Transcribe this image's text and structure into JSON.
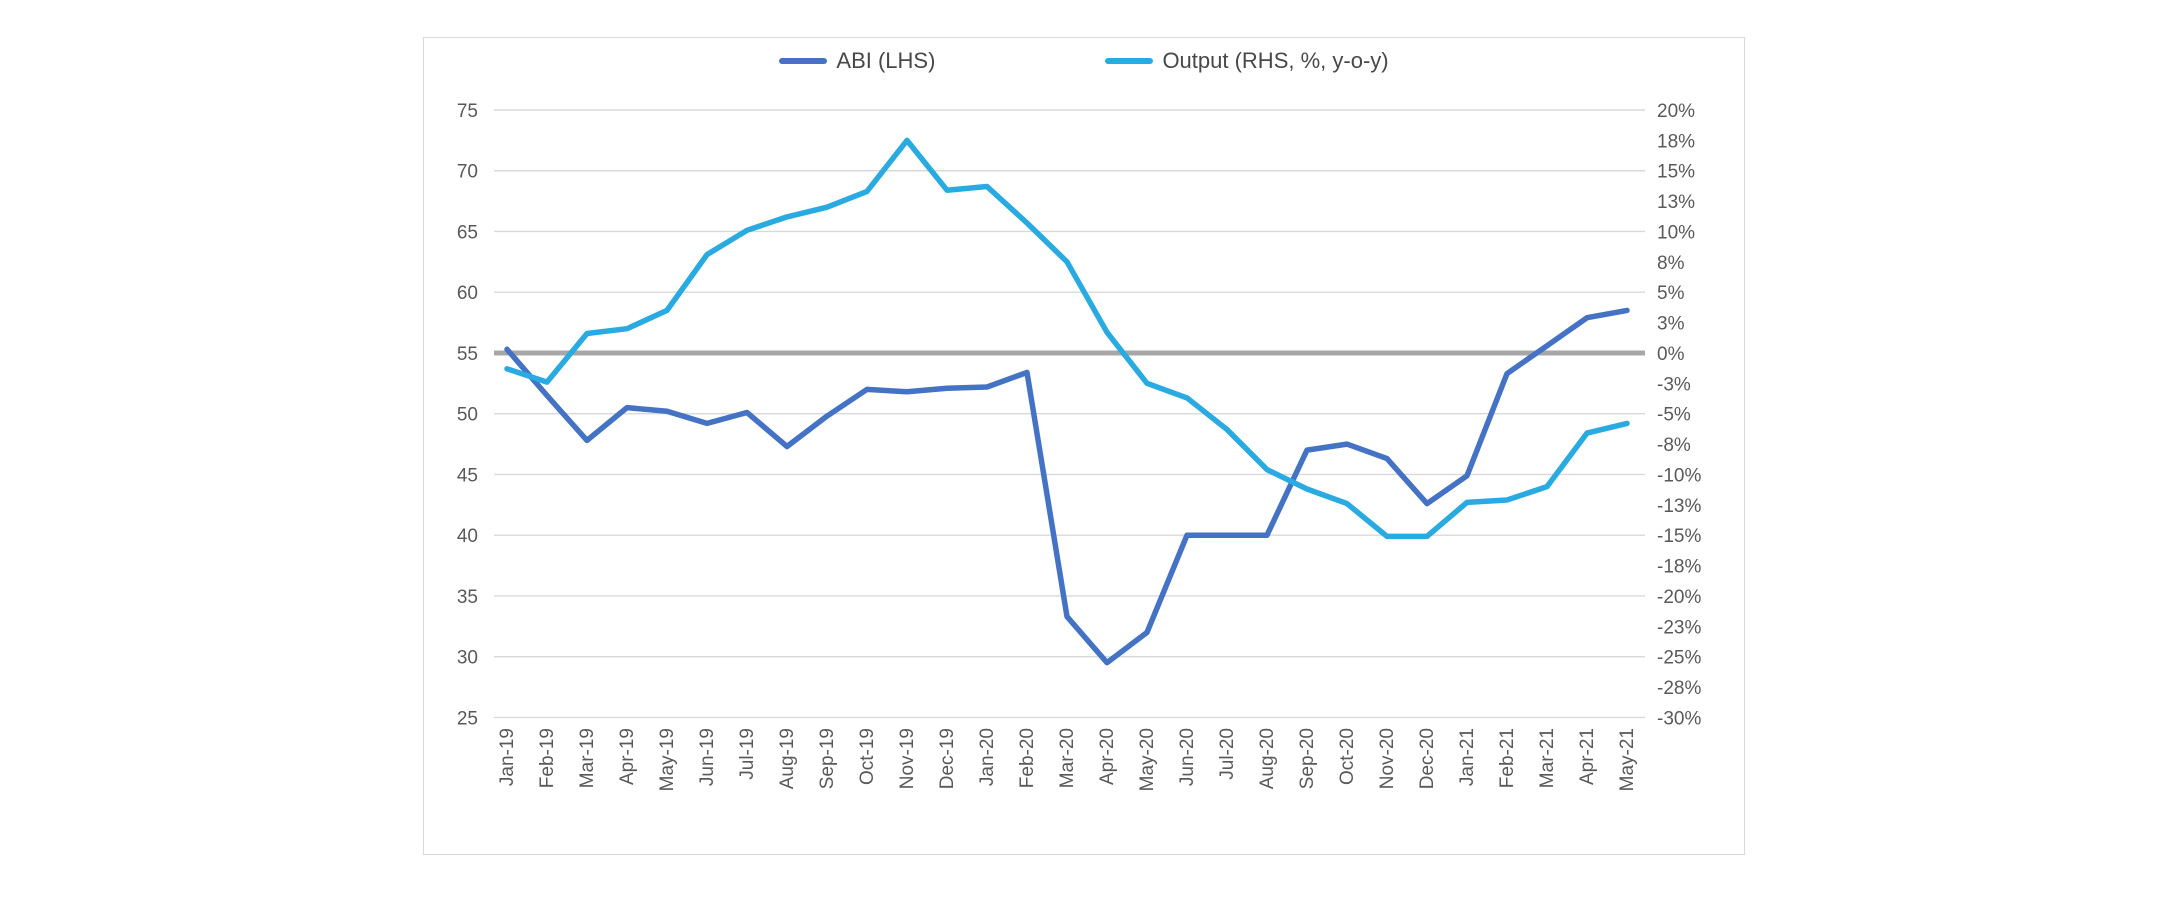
{
  "chart_data": {
    "type": "line",
    "title": "",
    "categories": [
      "Jan-19",
      "Feb-19",
      "Mar-19",
      "Apr-19",
      "May-19",
      "Jun-19",
      "Jul-19",
      "Aug-19",
      "Sep-19",
      "Oct-19",
      "Nov-19",
      "Dec-19",
      "Jan-20",
      "Feb-20",
      "Mar-20",
      "Apr-20",
      "May-20",
      "Jun-20",
      "Jul-20",
      "Aug-20",
      "Sep-20",
      "Oct-20",
      "Nov-20",
      "Dec-20",
      "Jan-21",
      "Feb-21",
      "Mar-21",
      "Apr-21",
      "May-21"
    ],
    "series": [
      {
        "name": "ABI (LHS)",
        "axis": "left",
        "color": "#4472C4",
        "values": [
          55.3,
          51.5,
          47.8,
          50.5,
          50.2,
          49.2,
          50.1,
          47.3,
          49.8,
          52.0,
          51.8,
          52.1,
          52.2,
          53.4,
          33.3,
          29.5,
          32.0,
          40.0,
          40.0,
          40.0,
          47.0,
          47.5,
          46.3,
          42.6,
          44.9,
          53.3,
          55.6,
          57.9,
          58.5
        ]
      },
      {
        "name": "Output (RHS, %, y-o-y)",
        "axis": "right",
        "color": "#29ABE2",
        "values": [
          -1.3,
          -2.4,
          1.6,
          2.0,
          3.5,
          8.1,
          10.1,
          11.2,
          12.0,
          13.3,
          17.5,
          13.4,
          13.7,
          10.7,
          7.5,
          1.7,
          -2.5,
          -3.7,
          -6.3,
          -9.6,
          -11.2,
          -12.4,
          -15.1,
          -15.1,
          -12.3,
          -12.1,
          -11.0,
          -6.6,
          -5.8
        ]
      }
    ],
    "left_axis": {
      "min": 25,
      "max": 75,
      "tick_step": 5,
      "tick_labels": [
        "75",
        "70",
        "65",
        "60",
        "55",
        "50",
        "45",
        "40",
        "35",
        "30",
        "25"
      ]
    },
    "right_axis": {
      "min": -30,
      "max": 20,
      "tick_step": 2.5,
      "tick_labels": [
        "20%",
        "18%",
        "15%",
        "13%",
        "10%",
        "8%",
        "5%",
        "3%",
        "0%",
        "-3%",
        "-5%",
        "-8%",
        "-10%",
        "-13%",
        "-15%",
        "-18%",
        "-20%",
        "-23%",
        "-25%",
        "-28%",
        "-30%"
      ]
    },
    "zero_line": {
      "left_value": 55,
      "right_value": 0,
      "color": "#A7A7A7"
    },
    "grid": true,
    "legend_position": "top",
    "gridline_color": "#D9D9D9",
    "tick_label_color": "#595959",
    "xlabel": "",
    "ylabel": ""
  }
}
